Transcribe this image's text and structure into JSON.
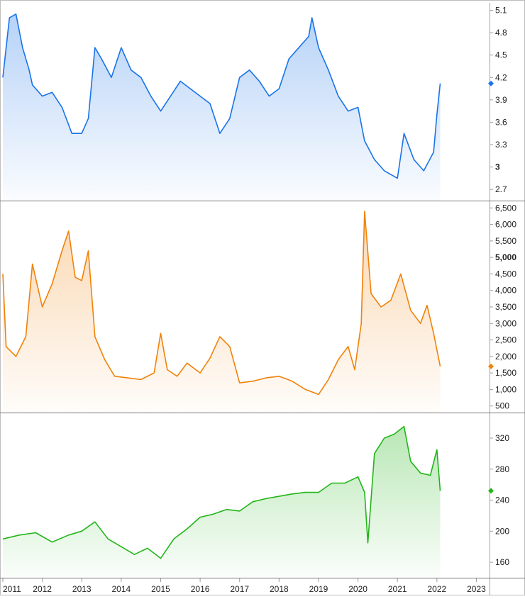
{
  "chart_data": [
    {
      "type": "area",
      "color": "#1a73e8",
      "ylim": [
        2.55,
        5.2
      ],
      "y_ticks": [
        {
          "value": 5.1,
          "label": "5.1",
          "bold": false
        },
        {
          "value": 4.8,
          "label": "4.8",
          "bold": false
        },
        {
          "value": 4.5,
          "label": "4.5",
          "bold": false
        },
        {
          "value": 4.2,
          "label": "4.2",
          "bold": false
        },
        {
          "value": 3.9,
          "label": "3.9",
          "bold": false
        },
        {
          "value": 3.6,
          "label": "3.6",
          "bold": false
        },
        {
          "value": 3.3,
          "label": "3.3",
          "bold": false
        },
        {
          "value": 3.0,
          "label": "3",
          "bold": true
        },
        {
          "value": 2.7,
          "label": "2.7",
          "bold": false
        }
      ],
      "last_value": 4.12,
      "series": [
        {
          "x": "2011-01",
          "y": 4.2
        },
        {
          "x": "2011-03",
          "y": 5.0
        },
        {
          "x": "2011-05",
          "y": 5.05
        },
        {
          "x": "2011-07",
          "y": 4.6
        },
        {
          "x": "2011-09",
          "y": 4.3
        },
        {
          "x": "2011-10",
          "y": 4.1
        },
        {
          "x": "2012-01",
          "y": 3.95
        },
        {
          "x": "2012-04",
          "y": 4.0
        },
        {
          "x": "2012-07",
          "y": 3.8
        },
        {
          "x": "2012-10",
          "y": 3.45
        },
        {
          "x": "2013-01",
          "y": 3.45
        },
        {
          "x": "2013-03",
          "y": 3.65
        },
        {
          "x": "2013-05",
          "y": 4.6
        },
        {
          "x": "2013-07",
          "y": 4.45
        },
        {
          "x": "2013-10",
          "y": 4.2
        },
        {
          "x": "2014-01",
          "y": 4.6
        },
        {
          "x": "2014-04",
          "y": 4.3
        },
        {
          "x": "2014-07",
          "y": 4.2
        },
        {
          "x": "2014-10",
          "y": 3.95
        },
        {
          "x": "2015-01",
          "y": 3.75
        },
        {
          "x": "2015-04",
          "y": 3.95
        },
        {
          "x": "2015-07",
          "y": 4.15
        },
        {
          "x": "2015-10",
          "y": 4.05
        },
        {
          "x": "2016-01",
          "y": 3.95
        },
        {
          "x": "2016-04",
          "y": 3.85
        },
        {
          "x": "2016-07",
          "y": 3.45
        },
        {
          "x": "2016-10",
          "y": 3.65
        },
        {
          "x": "2017-01",
          "y": 4.2
        },
        {
          "x": "2017-04",
          "y": 4.3
        },
        {
          "x": "2017-07",
          "y": 4.15
        },
        {
          "x": "2017-10",
          "y": 3.95
        },
        {
          "x": "2018-01",
          "y": 4.05
        },
        {
          "x": "2018-04",
          "y": 4.45
        },
        {
          "x": "2018-07",
          "y": 4.6
        },
        {
          "x": "2018-10",
          "y": 4.75
        },
        {
          "x": "2018-11",
          "y": 5.0
        },
        {
          "x": "2019-01",
          "y": 4.6
        },
        {
          "x": "2019-04",
          "y": 4.3
        },
        {
          "x": "2019-07",
          "y": 3.95
        },
        {
          "x": "2019-10",
          "y": 3.75
        },
        {
          "x": "2020-01",
          "y": 3.8
        },
        {
          "x": "2020-03",
          "y": 3.35
        },
        {
          "x": "2020-06",
          "y": 3.1
        },
        {
          "x": "2020-09",
          "y": 2.95
        },
        {
          "x": "2021-01",
          "y": 2.85
        },
        {
          "x": "2021-03",
          "y": 3.45
        },
        {
          "x": "2021-06",
          "y": 3.1
        },
        {
          "x": "2021-09",
          "y": 2.95
        },
        {
          "x": "2021-12",
          "y": 3.2
        },
        {
          "x": "2022-01",
          "y": 3.7
        },
        {
          "x": "2022-02",
          "y": 4.12
        }
      ]
    },
    {
      "type": "area",
      "color": "#f0820a",
      "ylim": [
        300,
        6700
      ],
      "y_ticks": [
        {
          "value": 6500,
          "label": "6,500",
          "bold": false
        },
        {
          "value": 6000,
          "label": "6,000",
          "bold": false
        },
        {
          "value": 5500,
          "label": "5,500",
          "bold": false
        },
        {
          "value": 5000,
          "label": "5,000",
          "bold": true
        },
        {
          "value": 4500,
          "label": "4,500",
          "bold": false
        },
        {
          "value": 4000,
          "label": "4,000",
          "bold": false
        },
        {
          "value": 3500,
          "label": "3,500",
          "bold": false
        },
        {
          "value": 3000,
          "label": "3,000",
          "bold": false
        },
        {
          "value": 2500,
          "label": "2,500",
          "bold": false
        },
        {
          "value": 2000,
          "label": "2,000",
          "bold": false
        },
        {
          "value": 1500,
          "label": "1,500",
          "bold": false
        },
        {
          "value": 1000,
          "label": "1,000",
          "bold": false
        },
        {
          "value": 500,
          "label": "500",
          "bold": false
        }
      ],
      "last_value": 1700,
      "series": [
        {
          "x": "2011-01",
          "y": 4500
        },
        {
          "x": "2011-02",
          "y": 2300
        },
        {
          "x": "2011-05",
          "y": 2000
        },
        {
          "x": "2011-08",
          "y": 2600
        },
        {
          "x": "2011-10",
          "y": 4800
        },
        {
          "x": "2012-01",
          "y": 3500
        },
        {
          "x": "2012-04",
          "y": 4200
        },
        {
          "x": "2012-07",
          "y": 5200
        },
        {
          "x": "2012-09",
          "y": 5800
        },
        {
          "x": "2012-11",
          "y": 4400
        },
        {
          "x": "2013-01",
          "y": 4300
        },
        {
          "x": "2013-03",
          "y": 5200
        },
        {
          "x": "2013-05",
          "y": 2600
        },
        {
          "x": "2013-08",
          "y": 1900
        },
        {
          "x": "2013-11",
          "y": 1400
        },
        {
          "x": "2014-03",
          "y": 1350
        },
        {
          "x": "2014-07",
          "y": 1300
        },
        {
          "x": "2014-11",
          "y": 1500
        },
        {
          "x": "2015-01",
          "y": 2700
        },
        {
          "x": "2015-03",
          "y": 1600
        },
        {
          "x": "2015-06",
          "y": 1400
        },
        {
          "x": "2015-09",
          "y": 1800
        },
        {
          "x": "2016-01",
          "y": 1500
        },
        {
          "x": "2016-04",
          "y": 1950
        },
        {
          "x": "2016-07",
          "y": 2600
        },
        {
          "x": "2016-10",
          "y": 2300
        },
        {
          "x": "2017-01",
          "y": 1200
        },
        {
          "x": "2017-05",
          "y": 1250
        },
        {
          "x": "2017-09",
          "y": 1350
        },
        {
          "x": "2018-01",
          "y": 1400
        },
        {
          "x": "2018-05",
          "y": 1250
        },
        {
          "x": "2018-09",
          "y": 1000
        },
        {
          "x": "2019-01",
          "y": 850
        },
        {
          "x": "2019-04",
          "y": 1300
        },
        {
          "x": "2019-07",
          "y": 1900
        },
        {
          "x": "2019-10",
          "y": 2300
        },
        {
          "x": "2019-12",
          "y": 1600
        },
        {
          "x": "2020-02",
          "y": 3000
        },
        {
          "x": "2020-03",
          "y": 6400
        },
        {
          "x": "2020-05",
          "y": 3900
        },
        {
          "x": "2020-08",
          "y": 3500
        },
        {
          "x": "2020-11",
          "y": 3700
        },
        {
          "x": "2021-02",
          "y": 4500
        },
        {
          "x": "2021-05",
          "y": 3400
        },
        {
          "x": "2021-08",
          "y": 3000
        },
        {
          "x": "2021-10",
          "y": 3550
        },
        {
          "x": "2021-12",
          "y": 2700
        },
        {
          "x": "2022-02",
          "y": 1700
        }
      ]
    },
    {
      "type": "area",
      "color": "#22b518",
      "ylim": [
        140,
        352
      ],
      "y_ticks": [
        {
          "value": 320,
          "label": "320",
          "bold": false
        },
        {
          "value": 280,
          "label": "280",
          "bold": false
        },
        {
          "value": 240,
          "label": "240",
          "bold": false
        },
        {
          "value": 200,
          "label": "200",
          "bold": false
        },
        {
          "value": 160,
          "label": "160",
          "bold": false
        }
      ],
      "last_value": 252,
      "series": [
        {
          "x": "2011-01",
          "y": 190
        },
        {
          "x": "2011-06",
          "y": 195
        },
        {
          "x": "2011-11",
          "y": 198
        },
        {
          "x": "2012-04",
          "y": 186
        },
        {
          "x": "2012-09",
          "y": 195
        },
        {
          "x": "2013-01",
          "y": 200
        },
        {
          "x": "2013-05",
          "y": 212
        },
        {
          "x": "2013-09",
          "y": 190
        },
        {
          "x": "2014-01",
          "y": 180
        },
        {
          "x": "2014-05",
          "y": 170
        },
        {
          "x": "2014-09",
          "y": 178
        },
        {
          "x": "2015-01",
          "y": 165
        },
        {
          "x": "2015-05",
          "y": 190
        },
        {
          "x": "2015-09",
          "y": 203
        },
        {
          "x": "2016-01",
          "y": 218
        },
        {
          "x": "2016-05",
          "y": 222
        },
        {
          "x": "2016-09",
          "y": 228
        },
        {
          "x": "2017-01",
          "y": 226
        },
        {
          "x": "2017-05",
          "y": 238
        },
        {
          "x": "2017-09",
          "y": 242
        },
        {
          "x": "2018-01",
          "y": 245
        },
        {
          "x": "2018-05",
          "y": 248
        },
        {
          "x": "2018-09",
          "y": 250
        },
        {
          "x": "2019-01",
          "y": 250
        },
        {
          "x": "2019-05",
          "y": 262
        },
        {
          "x": "2019-09",
          "y": 262
        },
        {
          "x": "2020-01",
          "y": 270
        },
        {
          "x": "2020-03",
          "y": 250
        },
        {
          "x": "2020-04",
          "y": 185
        },
        {
          "x": "2020-06",
          "y": 300
        },
        {
          "x": "2020-09",
          "y": 320
        },
        {
          "x": "2020-12",
          "y": 325
        },
        {
          "x": "2021-03",
          "y": 335
        },
        {
          "x": "2021-05",
          "y": 290
        },
        {
          "x": "2021-08",
          "y": 275
        },
        {
          "x": "2021-11",
          "y": 272
        },
        {
          "x": "2022-01",
          "y": 305
        },
        {
          "x": "2022-02",
          "y": 252
        }
      ]
    }
  ],
  "x_axis": {
    "min": "2011-01",
    "max": "2023-05",
    "ticks": [
      {
        "value": "2011-01",
        "label": "2011"
      },
      {
        "value": "2012-01",
        "label": "2012"
      },
      {
        "value": "2013-01",
        "label": "2013"
      },
      {
        "value": "2014-01",
        "label": "2014"
      },
      {
        "value": "2015-01",
        "label": "2015"
      },
      {
        "value": "2016-01",
        "label": "2016"
      },
      {
        "value": "2017-01",
        "label": "2017"
      },
      {
        "value": "2018-01",
        "label": "2018"
      },
      {
        "value": "2019-01",
        "label": "2019"
      },
      {
        "value": "2020-01",
        "label": "2020"
      },
      {
        "value": "2021-01",
        "label": "2021"
      },
      {
        "value": "2022-01",
        "label": "2022"
      },
      {
        "value": "2023-01",
        "label": "2023"
      }
    ]
  }
}
